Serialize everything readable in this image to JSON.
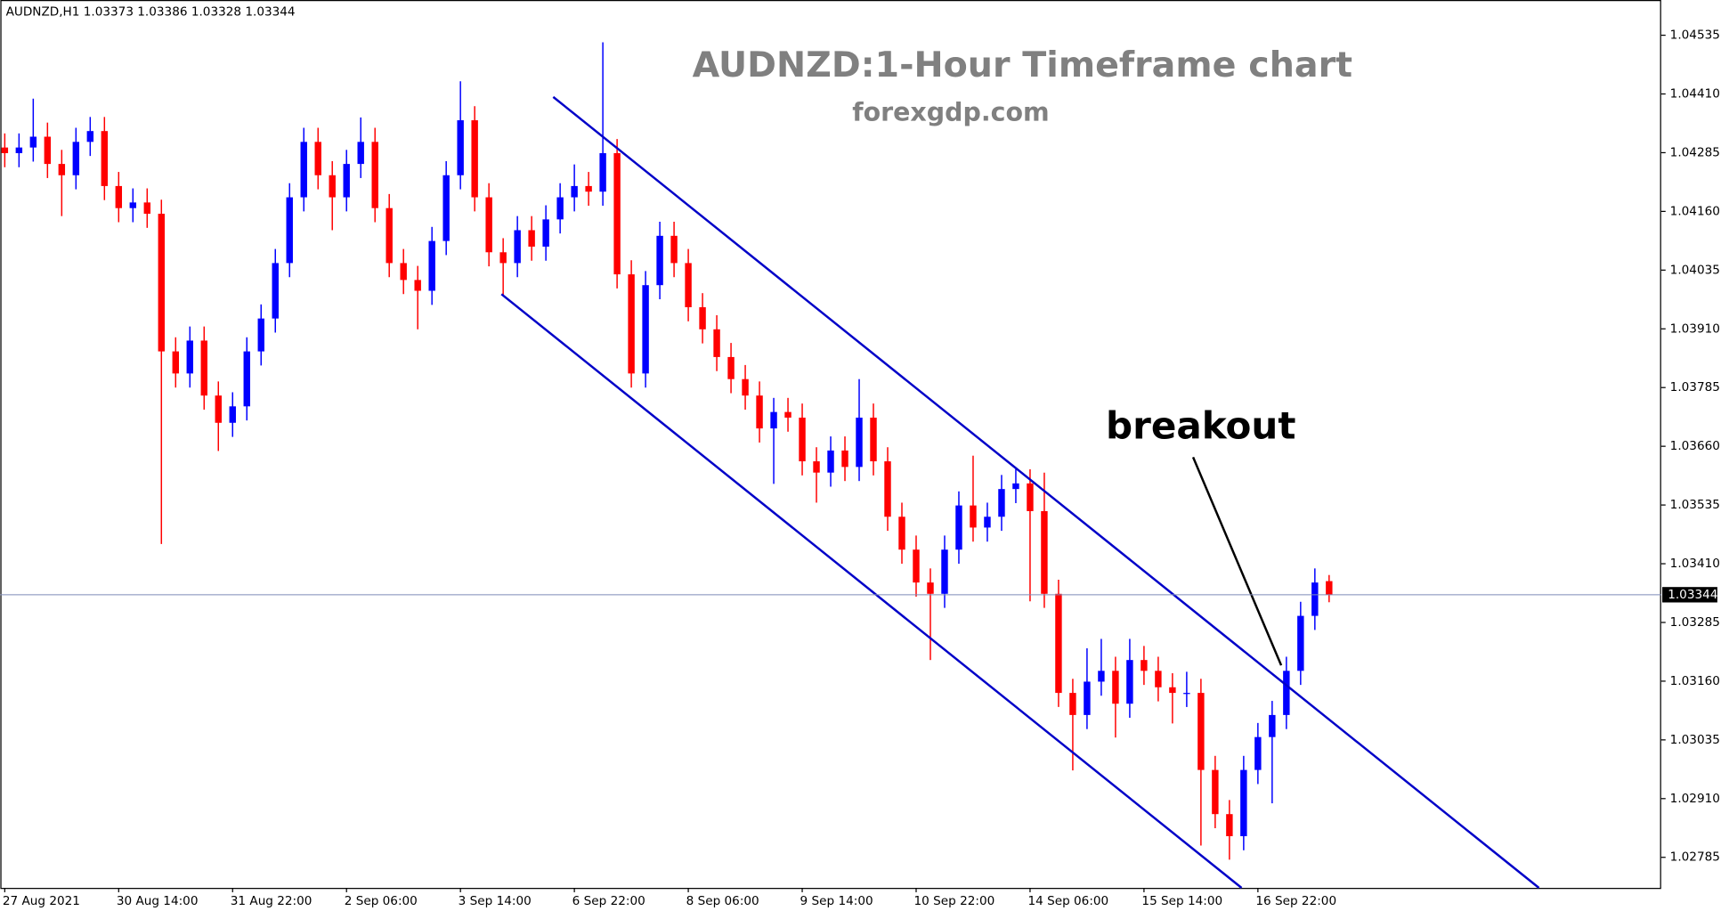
{
  "chart_data": {
    "type": "candlestick",
    "header": "AUDNZD,H1  1.03373 1.03386 1.03328 1.03344",
    "title": "AUDNZD:1-Hour Timeframe chart",
    "subtitle": "forexgdp.com",
    "annotation": "breakout",
    "up_color": "#0000ff",
    "down_color": "#ff0000",
    "current_price": 1.03344,
    "ylim": [
      1.0272,
      1.0461
    ],
    "yticks": [
      1.04535,
      {
        "value": 1.0441,
        "label": "1.04410"
      },
      1.04285,
      {
        "value": 1.0416,
        "label": "1.04160"
      },
      1.04035,
      {
        "value": 1.0391,
        "label": "1.03910"
      },
      1.03785,
      {
        "value": 1.0366,
        "label": "1.03660"
      },
      1.03535,
      {
        "value": 1.0341,
        "label": "1.03410"
      },
      1.03285,
      {
        "value": 1.0316,
        "label": "1.03160"
      },
      1.03035,
      {
        "value": 1.0291,
        "label": "1.02910"
      },
      1.02785
    ],
    "categories": [
      "27 Aug 2021",
      null,
      null,
      null,
      null,
      null,
      null,
      null,
      "30 Aug 14:00",
      null,
      null,
      null,
      null,
      null,
      null,
      null,
      "31 Aug 22:00",
      null,
      null,
      null,
      null,
      null,
      null,
      null,
      "2 Sep 06:00",
      null,
      null,
      null,
      null,
      null,
      null,
      null,
      "3 Sep 14:00",
      null,
      null,
      null,
      null,
      null,
      null,
      null,
      "6 Sep 22:00",
      null,
      null,
      null,
      null,
      null,
      null,
      null,
      "8 Sep 06:00",
      null,
      null,
      null,
      null,
      null,
      null,
      null,
      "9 Sep 14:00",
      null,
      null,
      null,
      null,
      null,
      null,
      null,
      "10 Sep 22:00",
      null,
      null,
      null,
      null,
      null,
      null,
      null,
      "14 Sep 06:00",
      null,
      null,
      null,
      null,
      null,
      null,
      null,
      "15 Sep 14:00",
      null,
      null,
      null,
      null,
      null,
      null,
      null,
      "16 Sep 22:00",
      null,
      null,
      null,
      null,
      null
    ],
    "open": [
      1.04296,
      1.04284,
      1.04296,
      1.04319,
      1.04261,
      1.04237,
      1.04308,
      1.04331,
      1.04214,
      1.04167,
      1.04179,
      1.04155,
      1.03862,
      1.03815,
      1.03885,
      1.03768,
      1.0371,
      1.03745,
      1.03862,
      1.03932,
      1.0405,
      1.0419,
      1.04308,
      1.04237,
      1.0419,
      1.04261,
      1.04308,
      1.04167,
      1.0405,
      1.04014,
      1.03991,
      1.04097,
      1.04237,
      1.04354,
      1.0419,
      1.04073,
      1.0405,
      1.0412,
      1.04085,
      1.04143,
      1.0419,
      1.04214,
      1.04202,
      1.04284,
      1.04026,
      1.03815,
      1.04003,
      1.04108,
      1.0405,
      1.03956,
      1.03909,
      1.0385,
      1.03803,
      1.03768,
      1.03698,
      1.03733,
      1.03721,
      1.03628,
      1.03604,
      1.03651,
      1.03616,
      1.03721,
      1.03628,
      1.0351,
      1.0344,
      1.0337,
      1.03346,
      1.0344,
      1.03534,
      1.03487,
      1.0351,
      1.03569,
      1.03581,
      1.03522,
      1.03346,
      1.03135,
      1.03088,
      1.03159,
      1.03182,
      1.03112,
      1.03205,
      1.03182,
      1.03147,
      1.03135,
      1.03135,
      1.02971,
      1.02877,
      1.0283,
      1.02971,
      1.03041,
      1.03088,
      1.03182,
      1.03299,
      1.03373
    ],
    "high": [
      1.04326,
      1.04326,
      1.044,
      1.04349,
      1.04291,
      1.04338,
      1.04361,
      1.04361,
      1.04244,
      1.04209,
      1.04209,
      1.04185,
      1.03892,
      1.03915,
      1.03915,
      1.03798,
      1.03775,
      1.03892,
      1.03962,
      1.0408,
      1.0422,
      1.04338,
      1.04338,
      1.04267,
      1.04291,
      1.0436,
      1.04338,
      1.04197,
      1.0408,
      1.04044,
      1.04127,
      1.04267,
      1.04437,
      1.04384,
      1.0422,
      1.04103,
      1.0415,
      1.0415,
      1.04173,
      1.0422,
      1.0426,
      1.04244,
      1.0452,
      1.04314,
      1.04056,
      1.04033,
      1.04138,
      1.04138,
      1.0408,
      1.03986,
      1.03939,
      1.0388,
      1.03833,
      1.03798,
      1.03763,
      1.03763,
      1.03751,
      1.03658,
      1.03681,
      1.03681,
      1.03803,
      1.03751,
      1.03658,
      1.0354,
      1.0347,
      1.034,
      1.0347,
      1.03564,
      1.0364,
      1.0354,
      1.03599,
      1.03611,
      1.03611,
      1.03604,
      1.03376,
      1.03165,
      1.0323,
      1.0325,
      1.03212,
      1.0325,
      1.03235,
      1.03212,
      1.03177,
      1.0318,
      1.03165,
      1.03001,
      1.02907,
      1.03001,
      1.03071,
      1.03118,
      1.03212,
      1.03329,
      1.034,
      1.03386
    ],
    "low": [
      1.04254,
      1.04254,
      1.04266,
      1.04231,
      1.0415,
      1.04207,
      1.04278,
      1.04184,
      1.04137,
      1.04137,
      1.04125,
      1.03452,
      1.03785,
      1.03785,
      1.03738,
      1.0365,
      1.0368,
      1.03715,
      1.03832,
      1.03902,
      1.0402,
      1.0416,
      1.04207,
      1.0412,
      1.0416,
      1.04231,
      1.04137,
      1.0402,
      1.03984,
      1.03909,
      1.03961,
      1.04067,
      1.04207,
      1.0416,
      1.04043,
      1.0398,
      1.0402,
      1.04055,
      1.04055,
      1.04113,
      1.0416,
      1.04172,
      1.04172,
      1.03996,
      1.03785,
      1.03785,
      1.03973,
      1.0402,
      1.03926,
      1.03879,
      1.0382,
      1.03773,
      1.03738,
      1.03668,
      1.0358,
      1.03691,
      1.03598,
      1.0354,
      1.03574,
      1.03586,
      1.03586,
      1.03598,
      1.0348,
      1.0341,
      1.0334,
      1.03205,
      1.03316,
      1.0341,
      1.03457,
      1.03457,
      1.0348,
      1.03539,
      1.0333,
      1.03316,
      1.03105,
      1.0297,
      1.03058,
      1.03129,
      1.0304,
      1.03082,
      1.03152,
      1.03117,
      1.0307,
      1.03105,
      1.0281,
      1.02847,
      1.0278,
      1.028,
      1.02941,
      1.029,
      1.03058,
      1.03152,
      1.03269,
      1.03328
    ],
    "close": [
      1.04284,
      1.04296,
      1.04319,
      1.04261,
      1.04237,
      1.04308,
      1.04331,
      1.04214,
      1.04167,
      1.04179,
      1.04155,
      1.03862,
      1.03815,
      1.03885,
      1.03768,
      1.0371,
      1.03745,
      1.03862,
      1.03932,
      1.0405,
      1.0419,
      1.04308,
      1.04237,
      1.0419,
      1.04261,
      1.04308,
      1.04167,
      1.0405,
      1.04014,
      1.03991,
      1.04097,
      1.04237,
      1.04354,
      1.0419,
      1.04073,
      1.0405,
      1.0412,
      1.04085,
      1.04143,
      1.0419,
      1.04214,
      1.04202,
      1.04284,
      1.04026,
      1.03815,
      1.04003,
      1.04108,
      1.0405,
      1.03956,
      1.03909,
      1.0385,
      1.03803,
      1.03768,
      1.03698,
      1.03733,
      1.03721,
      1.03628,
      1.03604,
      1.03651,
      1.03616,
      1.03721,
      1.03628,
      1.0351,
      1.0344,
      1.0337,
      1.03346,
      1.0344,
      1.03534,
      1.03487,
      1.0351,
      1.03569,
      1.03581,
      1.03522,
      1.03346,
      1.03135,
      1.03088,
      1.03159,
      1.03182,
      1.03112,
      1.03205,
      1.03182,
      1.03147,
      1.03135,
      1.03135,
      1.02971,
      1.02877,
      1.0283,
      1.02971,
      1.03041,
      1.03088,
      1.03182,
      1.03299,
      1.0337,
      1.03344
    ]
  }
}
